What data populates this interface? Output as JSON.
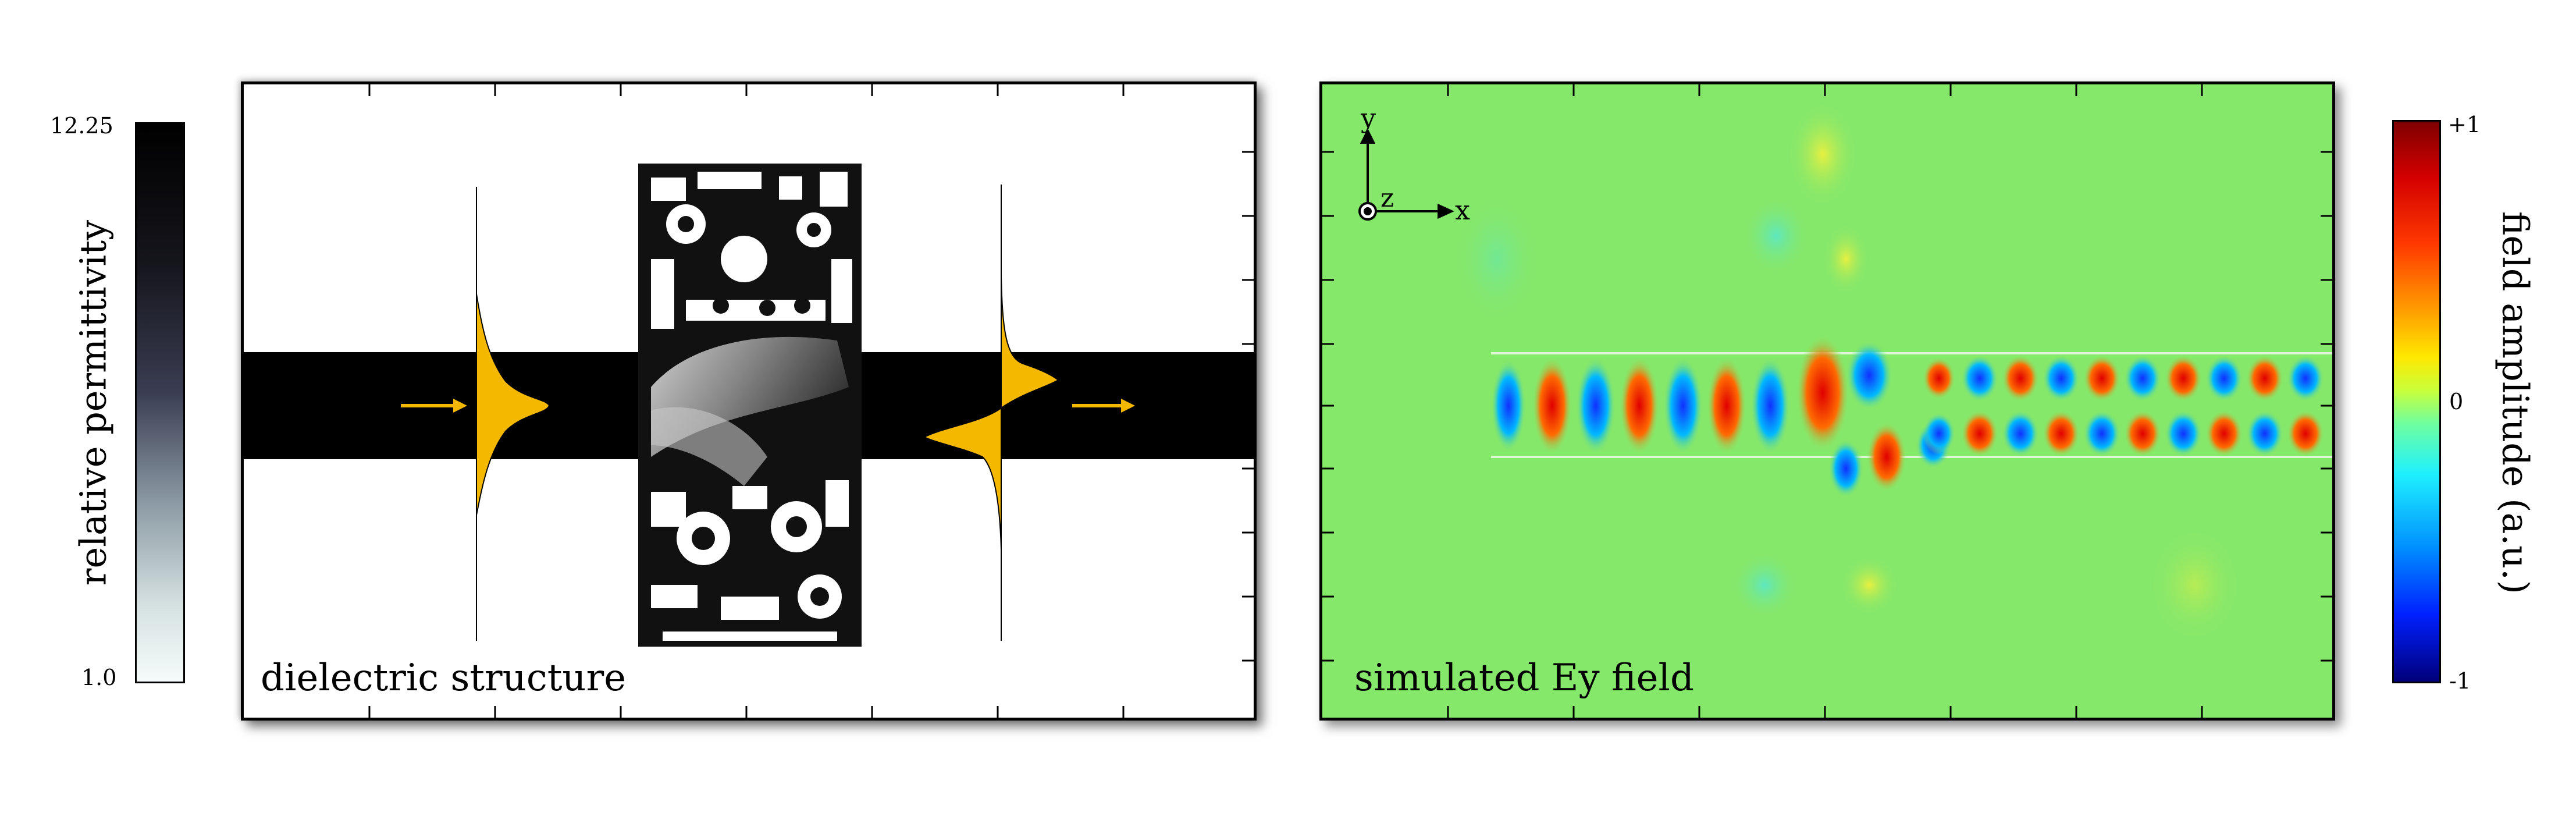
{
  "colorbar_left": {
    "max_label": "12.25",
    "min_label": "1.0",
    "axis_label": "relative permittivity"
  },
  "panel_left": {
    "label": "dielectric structure"
  },
  "panel_right": {
    "label": "simulated Ey field",
    "axis_x": "x",
    "axis_y": "y",
    "axis_z": "z"
  },
  "colorbar_right": {
    "max_label": "+1",
    "mid_label": "0",
    "min_label": "-1",
    "axis_label": "field amplitude (a.u.)"
  },
  "colors": {
    "mode_profile": "#f5b800",
    "waveguide": "#000000",
    "field_background": "#86e86a",
    "field_positive": "#e00000",
    "field_negative": "#1030ff"
  }
}
